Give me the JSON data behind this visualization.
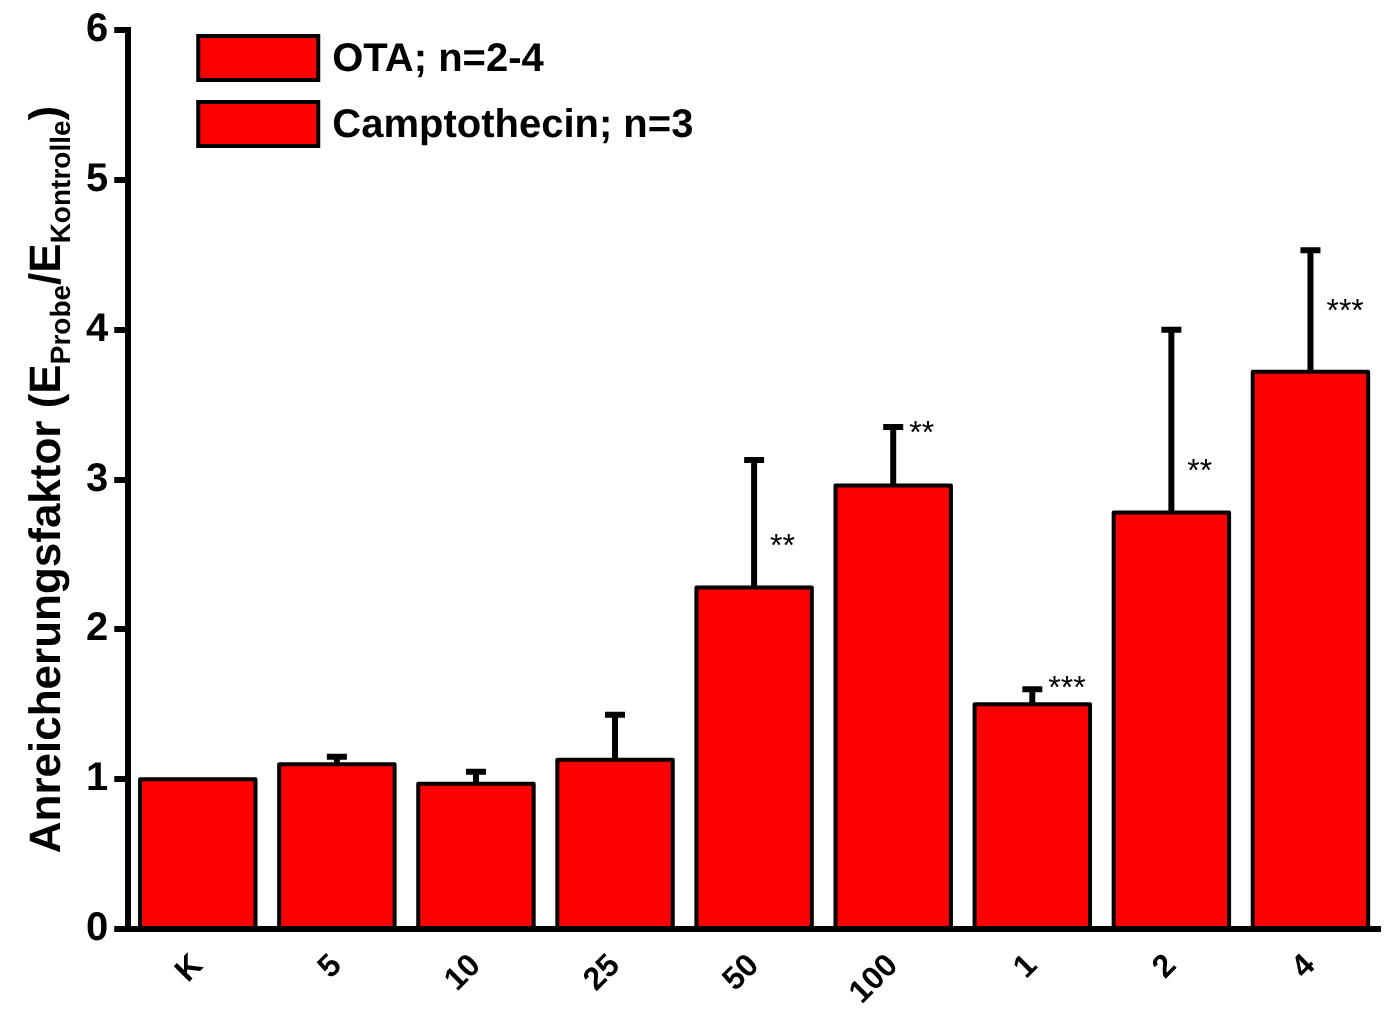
{
  "chart_data": {
    "type": "bar",
    "ylabel": "Anreicherungsfaktor (E$_{Probe}$/E$_{Kontrolle}$)",
    "categories": [
      "K",
      "5",
      "10",
      "25",
      "50",
      "100",
      "1",
      "2",
      "4"
    ],
    "series": [
      {
        "name": "OTA; n=2-4",
        "color": "#ff0000",
        "values": [
          1.0,
          1.1,
          0.97,
          1.13,
          2.28,
          2.96,
          null,
          null,
          null
        ],
        "errors": [
          null,
          [
            1.1,
            1.15
          ],
          [
            0.97,
            1.05
          ],
          [
            1.13,
            1.43
          ],
          [
            2.28,
            3.13
          ],
          [
            2.96,
            3.35
          ],
          null,
          null,
          null
        ]
      },
      {
        "name": "Camptothecin; n=3",
        "color": "#ff0000",
        "values": [
          null,
          null,
          null,
          null,
          null,
          null,
          1.5,
          2.78,
          3.72
        ],
        "errors": [
          null,
          null,
          null,
          null,
          null,
          null,
          [
            1.5,
            1.6
          ],
          [
            2.78,
            4.0
          ],
          [
            3.72,
            4.53
          ]
        ]
      }
    ],
    "ylim": [
      0,
      6
    ],
    "yticks": [
      0,
      1,
      2,
      3,
      4,
      5,
      6
    ],
    "grid": false,
    "legend": "top left",
    "annotations": [
      {
        "text": "**",
        "x": "50",
        "y": 2.55
      },
      {
        "text": "**",
        "x": "100",
        "y": 3.3
      },
      {
        "text": "***",
        "x": "1",
        "y": 1.6
      },
      {
        "text": "**",
        "x": "2",
        "y": 3.05
      },
      {
        "text": "***",
        "x": "4",
        "y": 4.12
      }
    ]
  }
}
